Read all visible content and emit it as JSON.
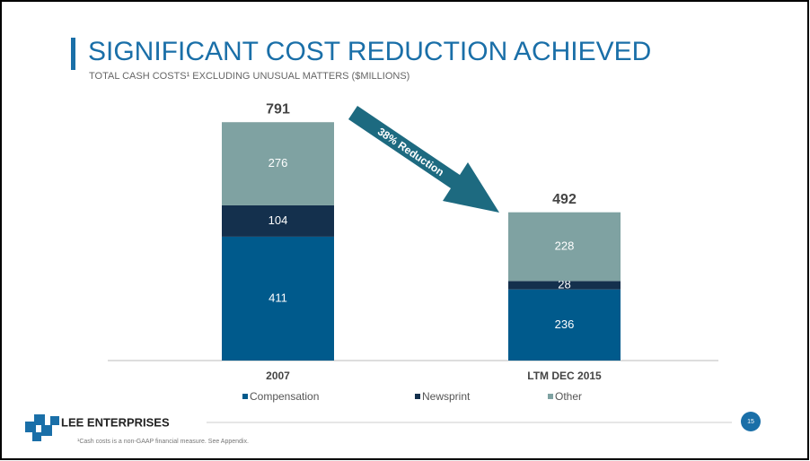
{
  "chart_data": {
    "type": "stacked-bar",
    "title": "SIGNIFICANT COST REDUCTION ACHIEVED",
    "subtitle": "TOTAL CASH COSTS¹ EXCLUDING UNUSUAL MATTERS ($MILLIONS)",
    "categories": [
      "2007",
      "LTM DEC 2015"
    ],
    "series": [
      {
        "name": "Compensation",
        "color": "#005a8c",
        "values": [
          411,
          236
        ]
      },
      {
        "name": "Newsprint",
        "color": "#14304d",
        "values": [
          104,
          28
        ]
      },
      {
        "name": "Other",
        "color": "#7fa2a2",
        "values": [
          276,
          228
        ]
      }
    ],
    "totals": [
      791,
      492
    ],
    "annotation": "38% Reduction",
    "legend": "bottom"
  },
  "footer": {
    "logo": "LEE ENTERPRISES",
    "page": "15",
    "footnote": "¹Cash costs is a non-GAAP financial measure. See Appendix."
  }
}
